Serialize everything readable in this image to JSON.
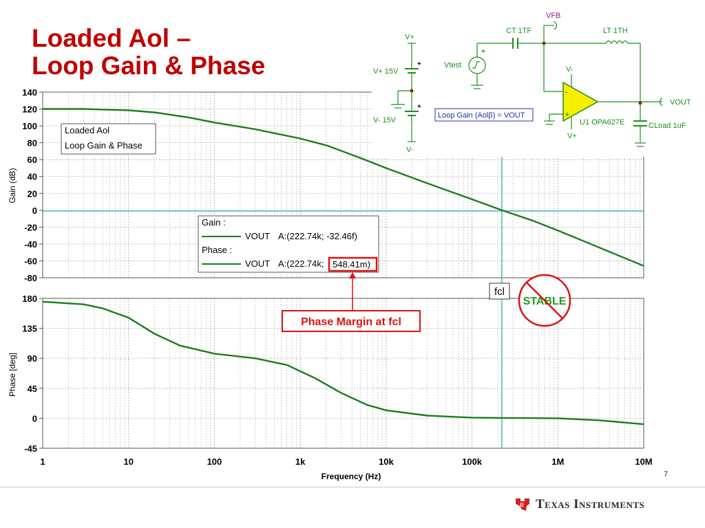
{
  "slide": {
    "title_line1": "Loaded Aol –",
    "title_line2": "Loop Gain & Phase",
    "slide_number": "7",
    "brand": "Texas Instruments"
  },
  "colors": {
    "title": "#c00000",
    "trace": "#1e7a1e",
    "axis_marker": "#36b0b0",
    "callout": "#e01010",
    "schematic": "#1e8c1e",
    "opamp_fill": "#f7f000"
  },
  "schematic": {
    "vfb": "VFB",
    "ct": "CT 1TF",
    "lt": "LT 1TH",
    "vplus_top": "V+",
    "vplus_src": "V+ 15V",
    "vminus_src": "V- 15V",
    "vminus_bottom": "V-",
    "vtest": "Vtest",
    "opamp_vminus": "V-",
    "opamp_vplus": "V+",
    "u1": "U1 OPA627E",
    "cload": "CLoad 1uF",
    "vout": "VOUT",
    "loop_gain_box": "Loop Gain (Aolβ) = VOUT"
  },
  "legend": {
    "line1": "Loaded Aol",
    "line2": "Loop Gain & Phase"
  },
  "cursor_box": {
    "gain_header": "Gain :",
    "gain_row_label": "VOUT",
    "gain_row_value": "A:(222.74k; -32.46f)",
    "phase_header": "Phase :",
    "phase_row_label": "VOUT",
    "phase_row_value_a": "A:(222.74k;",
    "phase_row_value_b": "548.41m)"
  },
  "annotations": {
    "fcl": "fcl",
    "stable": "STABLE",
    "phase_margin": "Phase Margin at fcl"
  },
  "chart_data": [
    {
      "type": "line",
      "title": "",
      "xlabel": "Frequency (Hz)",
      "ylabel": "Gain (dB)",
      "xscale": "log",
      "xlim": [
        1,
        10000000
      ],
      "ylim": [
        -80,
        140
      ],
      "yticks": [
        140,
        120,
        100,
        80,
        60,
        40,
        20,
        0,
        -20,
        -40,
        -60,
        -80
      ],
      "grid": true,
      "fcl_hz": 222740,
      "series": [
        {
          "name": "VOUT",
          "x": [
            1,
            3,
            10,
            20,
            50,
            100,
            300,
            1000,
            2000,
            5000,
            10000,
            30000,
            100000,
            222740,
            500000,
            1000000,
            3000000,
            10000000
          ],
          "y": [
            120,
            120,
            118.5,
            116,
            110,
            104,
            96,
            85,
            77,
            62,
            50,
            32,
            13,
            0,
            -12,
            -24,
            -44,
            -66
          ]
        }
      ]
    },
    {
      "type": "line",
      "title": "",
      "xlabel": "Frequency (Hz)",
      "ylabel": "Phase [deg]",
      "xscale": "log",
      "xlim": [
        1,
        10000000
      ],
      "ylim": [
        -45,
        180
      ],
      "yticks": [
        180,
        135,
        90,
        45,
        0,
        -45
      ],
      "xticklabels": [
        "1",
        "10",
        "100",
        "1k",
        "10k",
        "100k",
        "1M",
        "10M"
      ],
      "grid": true,
      "series": [
        {
          "name": "VOUT",
          "x": [
            1,
            3,
            5,
            10,
            20,
            40,
            100,
            300,
            700,
            1500,
            3000,
            6000,
            10000,
            30000,
            100000,
            222740,
            1000000,
            3000000,
            10000000
          ],
          "y": [
            175,
            171,
            165,
            151,
            127,
            109,
            97,
            90,
            80,
            60,
            38,
            20,
            12,
            4,
            1,
            0.55,
            0,
            -3,
            -9
          ]
        }
      ]
    }
  ]
}
